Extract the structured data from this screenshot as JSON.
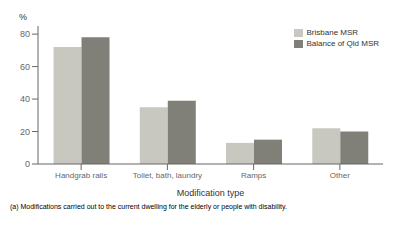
{
  "chart_data": {
    "type": "bar",
    "categories": [
      "Handgrab rails",
      "Toilet, bath, laundry",
      "Ramps",
      "Other"
    ],
    "series": [
      {
        "name": "Brisbane MSR",
        "color": "#c8c8c0",
        "values": [
          72,
          35,
          13,
          22
        ]
      },
      {
        "name": "Balance of Qld MSR",
        "color": "#808078",
        "values": [
          78,
          39,
          15,
          20
        ]
      }
    ],
    "xlabel": "Modification type",
    "ylabel": "%",
    "ylim": [
      0,
      85
    ],
    "yticks": [
      0,
      20,
      40,
      60,
      80
    ],
    "grid": false,
    "legend": "upper right",
    "annotations": [
      "(a) Modifications carried out to the current dwelling for the elderly or people with disability."
    ]
  }
}
